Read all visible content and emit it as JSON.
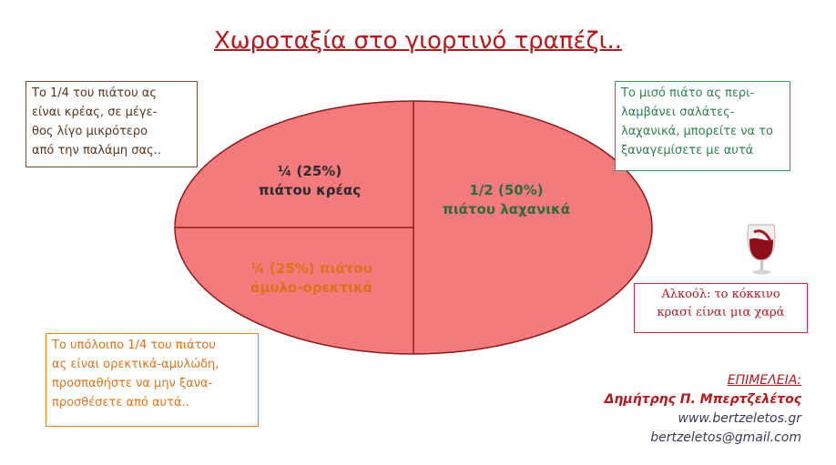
{
  "title": "Χωροταξία στο γιορτινό τραπέζι..",
  "boxes": {
    "meat": [
      "Το 1/4 του πιάτου ας",
      "είναι κρέας, σε μέγε-",
      "θος λίγο μικρότερο",
      "από την παλάμη σας.."
    ],
    "veg": [
      "Το μισό πιάτο ας περι-",
      "λαμβάνει σαλάτες-",
      "λαχανικά, μπορείτε να το",
      "ξαναγεμίσετε με αυτά"
    ],
    "carb": [
      "Το υπόλοιπο 1/4 του πιάτου",
      "ας είναι ορεκτικά-αμυλώδη,",
      "προσπαθήστε να μην ξανα-",
      "προσθέσετε από αυτά.."
    ],
    "wine": [
      "Αλκοόλ: το κόκκινο",
      "κρασί είναι μια χαρά"
    ]
  },
  "credits": {
    "role": "ΕΠΙΜΕΛΕΙΑ:",
    "author": "Δημήτρης Π. Μπερτζελέτος",
    "site": "www.bertzeletos.gr",
    "email": "bertzeletos@gmail.com"
  },
  "colors": {
    "plate": "#f47a7d",
    "divider": "#8b1a1a",
    "meat_text": "#2b2b2b",
    "carb_text": "#d9731a",
    "veg_text": "#2f6b3a",
    "title": "#b5181d"
  },
  "icons": {
    "wine": "wine-glass-icon"
  },
  "chart_data": {
    "type": "pie",
    "title": "",
    "slices": [
      {
        "label_lines": [
          "¼ (25%)",
          "πιάτου κρέας"
        ],
        "value": 25,
        "color_key": "meat_text"
      },
      {
        "label_lines": [
          "1/2 (50%)",
          "πιάτου  λαχανικά"
        ],
        "value": 50,
        "color_key": "veg_text"
      },
      {
        "label_lines": [
          "¼ (25%) πιάτου",
          "άμυλο-ορεκτικά"
        ],
        "value": 25,
        "color_key": "carb_text"
      }
    ]
  }
}
